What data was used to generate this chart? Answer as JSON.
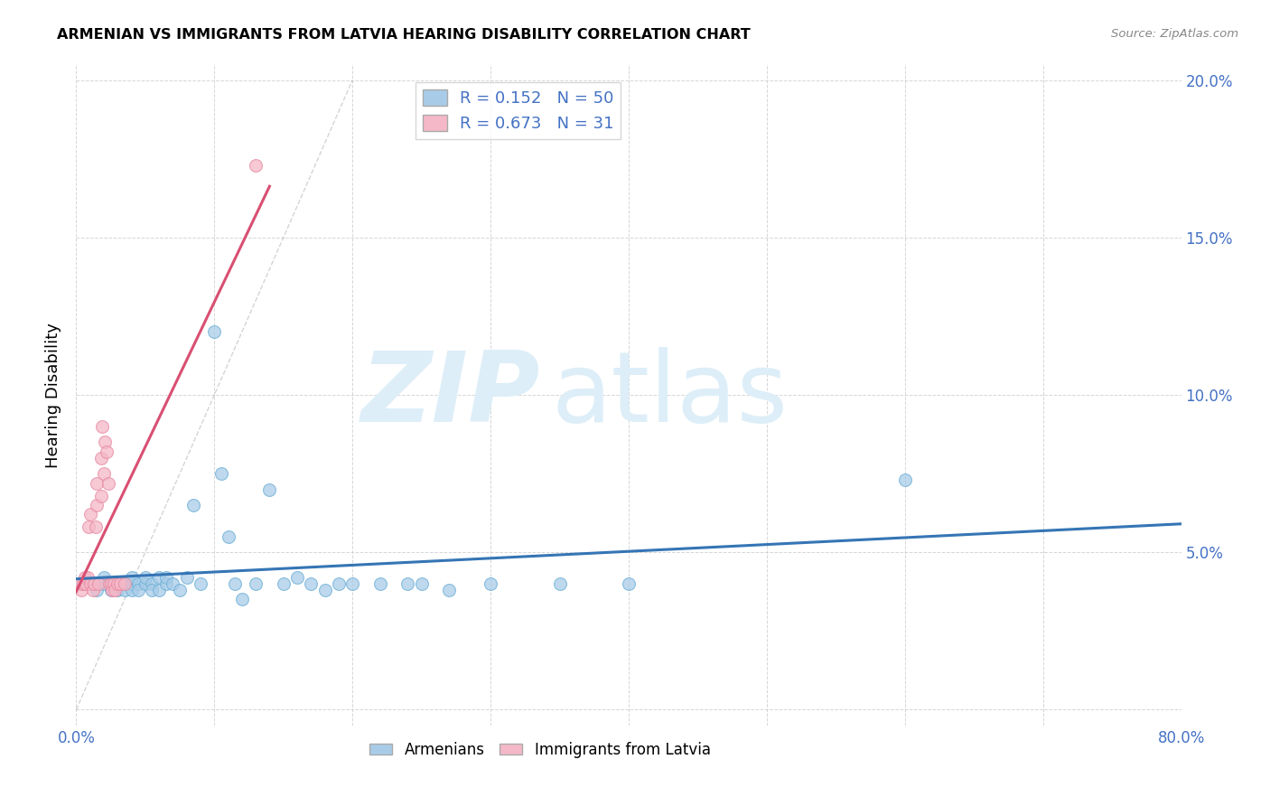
{
  "title": "ARMENIAN VS IMMIGRANTS FROM LATVIA HEARING DISABILITY CORRELATION CHART",
  "source": "Source: ZipAtlas.com",
  "ylabel": "Hearing Disability",
  "xlim": [
    0.0,
    0.8
  ],
  "ylim": [
    -0.005,
    0.205
  ],
  "yticks": [
    0.0,
    0.05,
    0.1,
    0.15,
    0.2
  ],
  "xticks": [
    0.0,
    0.1,
    0.2,
    0.3,
    0.4,
    0.5,
    0.6,
    0.7,
    0.8
  ],
  "R_blue": 0.152,
  "N_blue": 50,
  "R_pink": 0.673,
  "N_pink": 31,
  "blue_scatter_color": "#a8cce8",
  "blue_edge_color": "#6aaed6",
  "pink_scatter_color": "#f4b8c8",
  "pink_edge_color": "#e888a0",
  "blue_line_color": "#3575b5",
  "pink_line_color": "#d94f72",
  "tick_color": "#4472C4",
  "armenian_x": [
    0.005,
    0.01,
    0.015,
    0.02,
    0.02,
    0.025,
    0.025,
    0.03,
    0.03,
    0.035,
    0.035,
    0.04,
    0.04,
    0.04,
    0.045,
    0.045,
    0.05,
    0.05,
    0.055,
    0.055,
    0.06,
    0.06,
    0.065,
    0.065,
    0.07,
    0.075,
    0.08,
    0.085,
    0.09,
    0.1,
    0.105,
    0.11,
    0.115,
    0.12,
    0.13,
    0.14,
    0.15,
    0.16,
    0.17,
    0.18,
    0.19,
    0.2,
    0.22,
    0.24,
    0.25,
    0.27,
    0.3,
    0.35,
    0.4,
    0.6
  ],
  "armenian_y": [
    0.04,
    0.04,
    0.038,
    0.042,
    0.04,
    0.038,
    0.04,
    0.04,
    0.038,
    0.04,
    0.038,
    0.04,
    0.038,
    0.042,
    0.04,
    0.038,
    0.04,
    0.042,
    0.04,
    0.038,
    0.042,
    0.038,
    0.04,
    0.042,
    0.04,
    0.038,
    0.042,
    0.065,
    0.04,
    0.12,
    0.075,
    0.055,
    0.04,
    0.035,
    0.04,
    0.07,
    0.04,
    0.042,
    0.04,
    0.038,
    0.04,
    0.04,
    0.04,
    0.04,
    0.04,
    0.038,
    0.04,
    0.04,
    0.04,
    0.073
  ],
  "latvia_x": [
    0.003,
    0.004,
    0.005,
    0.006,
    0.007,
    0.008,
    0.009,
    0.01,
    0.01,
    0.012,
    0.013,
    0.014,
    0.015,
    0.015,
    0.016,
    0.018,
    0.018,
    0.019,
    0.02,
    0.021,
    0.022,
    0.023,
    0.024,
    0.025,
    0.026,
    0.027,
    0.028,
    0.03,
    0.032,
    0.035,
    0.13
  ],
  "latvia_y": [
    0.04,
    0.038,
    0.04,
    0.042,
    0.04,
    0.042,
    0.058,
    0.062,
    0.04,
    0.038,
    0.04,
    0.058,
    0.065,
    0.072,
    0.04,
    0.068,
    0.08,
    0.09,
    0.075,
    0.085,
    0.082,
    0.072,
    0.04,
    0.04,
    0.038,
    0.04,
    0.038,
    0.04,
    0.04,
    0.04,
    0.173
  ]
}
